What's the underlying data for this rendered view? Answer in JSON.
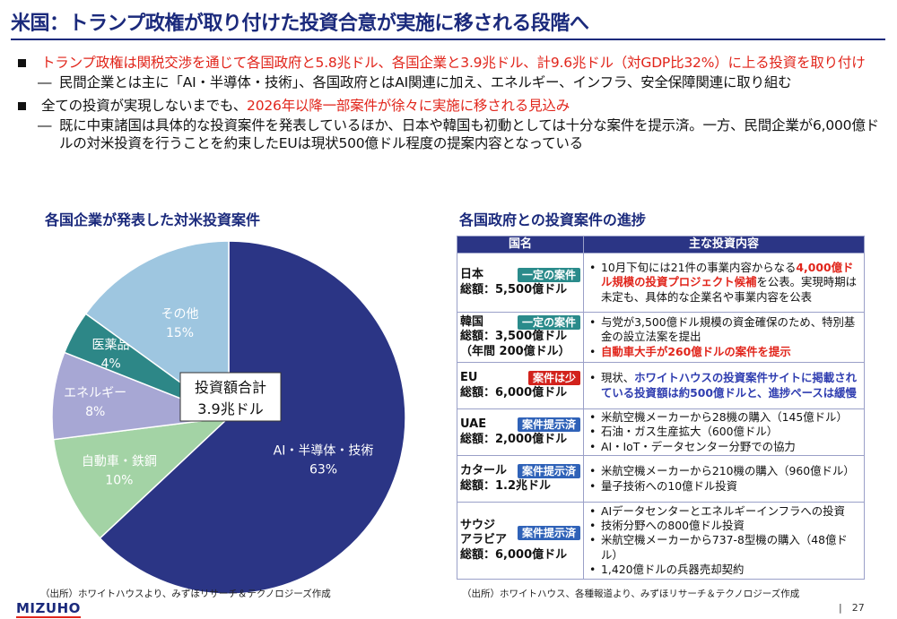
{
  "title": "米国：トランプ政権が取り付けた投資合意が実施に移される段階へ",
  "bullets": {
    "b1": "トランプ政権は関税交渉を通じて各国政府と5.8兆ドル、各国企業と3.9兆ドル、計9.6兆ドル（対GDP比32%）に上る投資を取り付け",
    "b1_sub": "民間企業とは主に「AI・半導体・技術」、各国政府とはAI関連に加え、エネルギー、インフラ、安全保障関連に取り組む",
    "b2_pre": "全ての投資が実現しないまでも、",
    "b2_red": "2026年以降一部案件が徐々に実施に移される見込み",
    "b2_sub": "既に中東諸国は具体的な投資案件を発表しているほか、日本や韓国も初動としては十分な案件を提示済。一方、民間企業が6,000億ドルの対米投資を行うことを約束したEUは現状500億ドル程度の提案内容となっている",
    "dash": "―"
  },
  "left": {
    "heading": "各国企業が発表した対米投資案件",
    "source": "（出所）ホワイトハウスより、みずほリサーチ＆テクノロジーズ作成"
  },
  "chart_data": {
    "type": "pie",
    "categories": [
      "AI・半導体・技術",
      "自動車・鉄鋼",
      "エネルギー",
      "医薬品",
      "その他"
    ],
    "values": [
      63,
      10,
      8,
      4,
      15
    ],
    "value_labels": [
      "63%",
      "10%",
      "8%",
      "4%",
      "15%"
    ],
    "colors": [
      "#2b3585",
      "#a3d3a5",
      "#a7a7d4",
      "#2d8787",
      "#9ec6e0"
    ],
    "center_label_line1": "投資額合計",
    "center_label_line2": "3.9兆ドル"
  },
  "right": {
    "heading": "各国政府との投資案件の進捗",
    "col1": "国名",
    "col2": "主な投資内容",
    "source": "（出所）ホワイトハウス、各種報道より、みずほリサーチ＆テクノロジーズ作成",
    "rows": [
      {
        "name": "日本",
        "badge": "一定の案件",
        "badge_color": "teal",
        "sum": "総額：5,500億ドル",
        "sum2": "",
        "item1_pre": "10月下旬には21件の事業内容からなる",
        "item1_red": "4,000億ドル規模の投資プロジェクト候補",
        "item1_post": "を公表。実現時期は未定も、具体的な企業名や事業内容を公表"
      },
      {
        "name": "韓国",
        "badge": "一定の案件",
        "badge_color": "teal",
        "sum": "総額：3,500億ドル",
        "sum2": "（年間 200億ドル）",
        "item1": "与党が3,500億ドル規模の資金確保のため、特別基金の設立法案を提出",
        "item2_red": "自動車大手が260億ドルの案件を提示"
      },
      {
        "name": "EU",
        "badge": "案件は少",
        "badge_color": "red",
        "sum": "総額：6,000億ドル",
        "sum2": "",
        "item1_pre": "現状、",
        "item1_blue": "ホワイトハウスの投資案件サイトに掲載されている投資額は約500億ドルと、進捗ペースは緩慢"
      },
      {
        "name": "UAE",
        "badge": "案件提示済",
        "badge_color": "blue",
        "sum": "総額：2,000億ドル",
        "sum2": "",
        "items": [
          "米航空機メーカーから28機の購入（145億ドル）",
          "石油・ガス生産拡大（600億ドル）",
          "AI・IoT・データセンター分野での協力"
        ]
      },
      {
        "name": "カタール",
        "badge": "案件提示済",
        "badge_color": "blue",
        "sum": "総額：1.2兆ドル",
        "sum2": "",
        "items": [
          "米航空機メーカーから210機の購入（960億ドル）",
          "量子技術への10億ドル投資"
        ]
      },
      {
        "name": "サウジアラビア",
        "name_l1": "サウジ",
        "name_l2": "アラビア",
        "badge": "案件提示済",
        "badge_color": "blue",
        "sum": "総額：6,000億ドル",
        "sum2": "",
        "items": [
          "AIデータセンターとエネルギーインフラへの投資",
          "技術分野への800億ドル投資",
          "米航空機メーカーから737-8型機の購入（48億ドル）",
          "1,420億ドルの兵器売却契約"
        ]
      }
    ]
  },
  "footer": {
    "logo": "MIZUHO",
    "page": "|　27"
  }
}
